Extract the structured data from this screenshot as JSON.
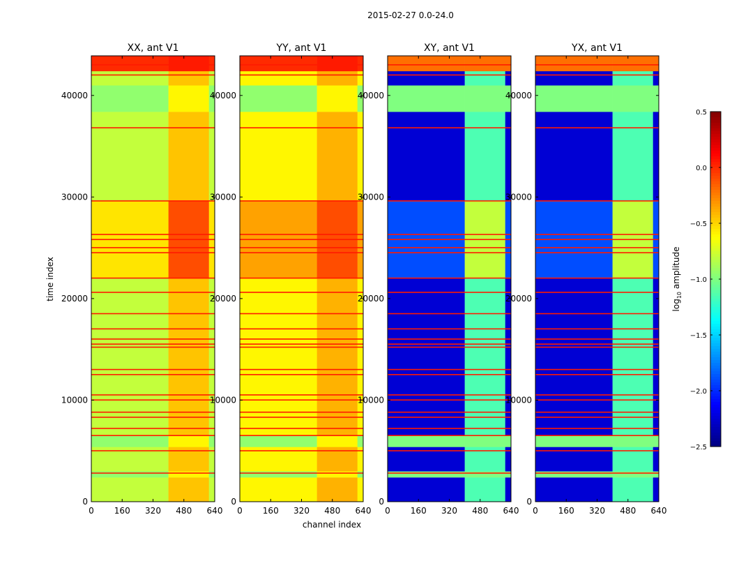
{
  "chart_data": {
    "type": "heatmap",
    "title": "2015-02-27 0.0-24.0",
    "xlabel": "channel index",
    "ylabel": "time index",
    "xlim": [
      0,
      640
    ],
    "ylim": [
      0,
      43900
    ],
    "xticks": [
      0,
      160,
      320,
      480,
      640
    ],
    "yticks": [
      0,
      10000,
      20000,
      30000,
      40000
    ],
    "colorbar": {
      "label_main": "log",
      "label_sub": "10",
      "label_rest": " amplitude",
      "range": [
        -2.5,
        0.5
      ],
      "ticks": [
        "0.5",
        "0.0",
        "−0.5",
        "−1.0",
        "−1.5",
        "−2.0",
        "−2.5"
      ],
      "tick_values": [
        0.5,
        0.0,
        -0.5,
        -1.0,
        -1.5,
        -2.0,
        -2.5
      ],
      "colormap": "jet"
    },
    "time_segments": [
      {
        "range": [
          0,
          2400
        ],
        "kind": "normal"
      },
      {
        "range": [
          2400,
          3000
        ],
        "kind": "green"
      },
      {
        "range": [
          3000,
          5400
        ],
        "kind": "normal"
      },
      {
        "range": [
          5400,
          6500
        ],
        "kind": "green"
      },
      {
        "range": [
          6500,
          22000
        ],
        "kind": "normal"
      },
      {
        "range": [
          22000,
          29600
        ],
        "kind": "high"
      },
      {
        "range": [
          29600,
          38400
        ],
        "kind": "normal"
      },
      {
        "range": [
          38400,
          41000
        ],
        "kind": "green"
      },
      {
        "range": [
          41000,
          42400
        ],
        "kind": "normal"
      },
      {
        "range": [
          42400,
          43900
        ],
        "kind": "top"
      }
    ],
    "channel_segments": [
      {
        "range": [
          0,
          400
        ],
        "kind": "low"
      },
      {
        "range": [
          400,
          610
        ],
        "kind": "rfi"
      },
      {
        "range": [
          610,
          640
        ],
        "kind": "low"
      }
    ],
    "flagged_times": [
      2800,
      5000,
      6500,
      7200,
      8300,
      8800,
      10000,
      10500,
      12500,
      13000,
      15200,
      15500,
      16000,
      17000,
      18500,
      20600,
      22000,
      24500,
      25000,
      25800,
      26300,
      29600,
      36800,
      42000,
      43000
    ],
    "flag_value": 0.05,
    "panels": [
      {
        "title": "XX, ant V1",
        "values": {
          "normal": {
            "low": -0.8,
            "rfi": -0.45
          },
          "high": {
            "low": -0.55,
            "rfi": -0.1
          },
          "green": {
            "low": -0.95,
            "rfi": -0.6
          },
          "top": {
            "low": 0.0,
            "rfi": 0.05
          }
        }
      },
      {
        "title": "YY, ant V1",
        "values": {
          "normal": {
            "low": -0.6,
            "rfi": -0.4
          },
          "high": {
            "low": -0.35,
            "rfi": -0.1
          },
          "green": {
            "low": -0.95,
            "rfi": -0.6
          },
          "top": {
            "low": 0.0,
            "rfi": 0.05
          }
        }
      },
      {
        "title": "XY, ant V1",
        "values": {
          "normal": {
            "low": -2.25,
            "rfi": -1.15
          },
          "high": {
            "low": -1.9,
            "rfi": -0.8
          },
          "green": {
            "low": -1.0,
            "rfi": -1.0
          },
          "top": {
            "low": -0.2,
            "rfi": -0.2
          }
        }
      },
      {
        "title": "YX, ant V1",
        "values": {
          "normal": {
            "low": -2.25,
            "rfi": -1.15
          },
          "high": {
            "low": -1.9,
            "rfi": -0.8
          },
          "green": {
            "low": -1.0,
            "rfi": -1.0
          },
          "top": {
            "low": -0.2,
            "rfi": -0.2
          }
        }
      }
    ]
  }
}
